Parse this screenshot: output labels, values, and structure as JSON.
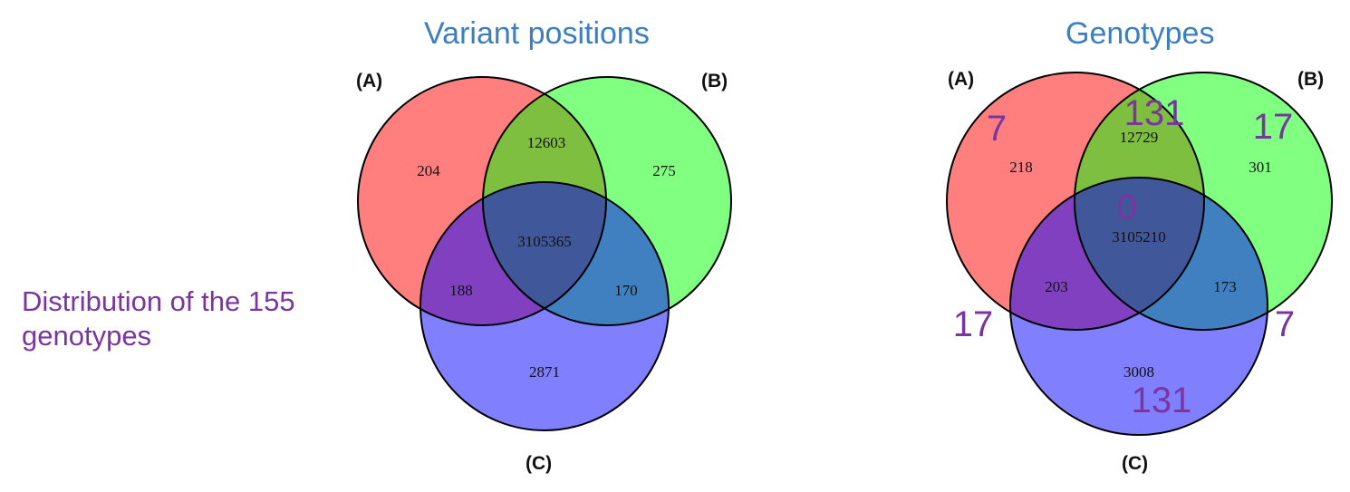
{
  "side_note": "Distribution of the 155 genotypes",
  "colors": {
    "set_a": "#ff7f7f",
    "set_b": "#80ff80",
    "set_c": "#8080ff",
    "ab": "#7fbf3f",
    "ac": "#8040c0",
    "bc": "#4080c0",
    "abc": "#40589a",
    "title": "#3d7ebf",
    "genotype_count": "#7a35a0"
  },
  "diagrams": [
    {
      "title": "Variant positions",
      "labels": {
        "a": "(A)",
        "b": "(B)",
        "c": "(C)"
      },
      "counts": {
        "a_only": "204",
        "b_only": "275",
        "c_only": "2871",
        "ab": "12603",
        "ac": "188",
        "bc": "170",
        "abc": "3105365"
      }
    },
    {
      "title": "Genotypes",
      "labels": {
        "a": "(A)",
        "b": "(B)",
        "c": "(C)"
      },
      "counts": {
        "a_only": "218",
        "b_only": "301",
        "c_only": "3008",
        "ab": "12729",
        "ac": "203",
        "bc": "173",
        "abc": "3105210"
      },
      "genotype_counts": {
        "a_top": "7",
        "ab_top": "131",
        "b_top": "17",
        "center": "0",
        "left": "17",
        "right": "7",
        "bottom": "131"
      }
    }
  ]
}
